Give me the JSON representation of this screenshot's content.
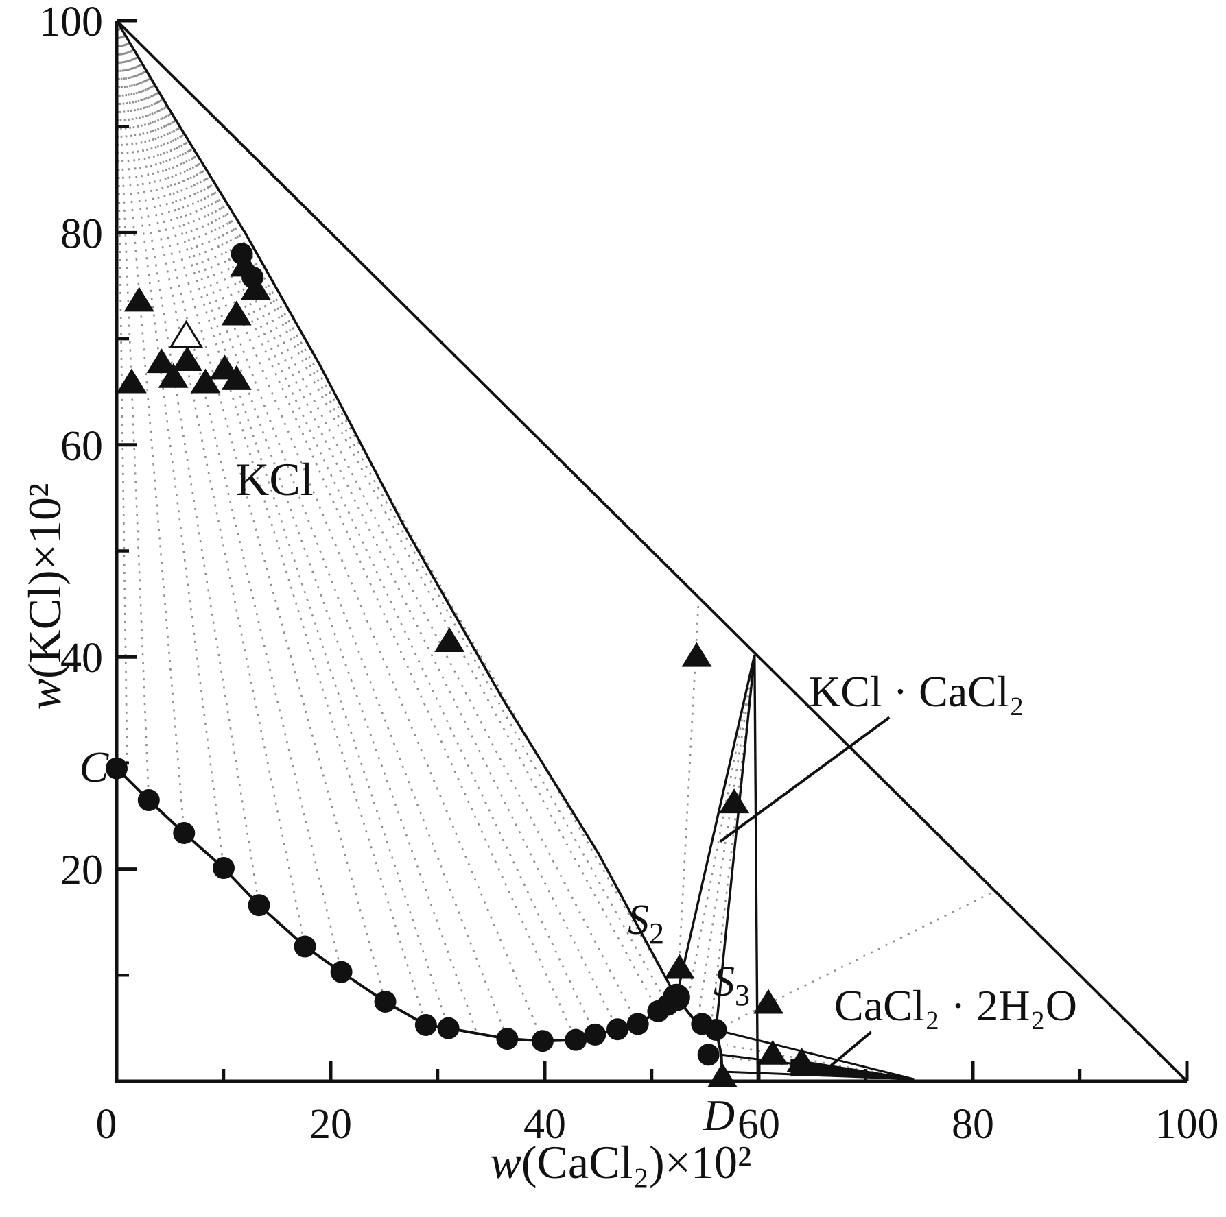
{
  "figure": {
    "background": "#ffffff",
    "ink": "#111111",
    "tie_line_color": "#8f8f8f"
  },
  "chart_data": {
    "type": "scatter",
    "description": "Isothermal phase diagram of the KCl-CaCl2-H2O system with wet-residue tie lines",
    "xlabel": {
      "italic_part": "w",
      "rest": "(CaCl₂)×10²"
    },
    "ylabel": {
      "italic_part": "w",
      "rest": "(KCl)×10²"
    },
    "xlim": [
      0,
      100
    ],
    "ylim": [
      0,
      100
    ],
    "x_ticks_major": [
      0,
      20,
      40,
      60,
      80,
      100
    ],
    "x_ticks_minor": [
      10,
      30,
      50,
      70,
      90
    ],
    "x_tick_labels": [
      "0",
      "20",
      "40",
      "60",
      "80",
      "100"
    ],
    "y_ticks_major": [
      20,
      40,
      60,
      80,
      100
    ],
    "y_ticks_minor": [
      10,
      30,
      50,
      70,
      90
    ],
    "y_tick_labels": [
      "20",
      "40",
      "60",
      "80",
      "100"
    ],
    "grid": false,
    "diagonal_line": [
      [
        0,
        100
      ],
      [
        100,
        0
      ]
    ],
    "solids": {
      "KCl_corner": [
        0,
        100
      ],
      "KCl_CaCl2_apex": [
        59.6,
        40.2
      ],
      "CaCl2_2H2O_tip": [
        74.5,
        0.2
      ]
    },
    "kcl_field_boundary": [
      [
        0,
        100
      ],
      [
        5,
        91.5
      ],
      [
        12,
        80
      ],
      [
        19,
        67.5
      ],
      [
        26.6,
        52.8
      ],
      [
        36.1,
        36
      ],
      [
        45,
        21.5
      ],
      [
        52.3,
        7.9
      ]
    ],
    "solubility_curve": [
      [
        0,
        29.5
      ],
      [
        3,
        26.5
      ],
      [
        6.3,
        23.4
      ],
      [
        10,
        20.1
      ],
      [
        13.3,
        16.6
      ],
      [
        17.6,
        12.7
      ],
      [
        21,
        10.3
      ],
      [
        25.1,
        7.5
      ],
      [
        28.9,
        5.3
      ],
      [
        31,
        5.0
      ],
      [
        36.5,
        4.0
      ],
      [
        39.8,
        3.8
      ],
      [
        42.9,
        3.9
      ],
      [
        44.7,
        4.4
      ],
      [
        46.8,
        4.9
      ],
      [
        48.7,
        5.4
      ],
      [
        50.6,
        6.6
      ],
      [
        51.5,
        7.2
      ],
      [
        52.3,
        7.9
      ]
    ],
    "s2_s3_curve": [
      [
        52.3,
        7.9
      ],
      [
        53.8,
        6.0
      ],
      [
        55.2,
        5.1
      ],
      [
        56.0,
        4.85
      ]
    ],
    "s3_d_curve": [
      [
        56.0,
        4.85
      ],
      [
        56.5,
        2.5
      ],
      [
        56.6,
        0.3
      ]
    ],
    "invariant_points": {
      "C": [
        0,
        29.5
      ],
      "S2": [
        52.3,
        7.9
      ],
      "S3": [
        56.0,
        4.85
      ],
      "D": [
        56.6,
        0.3
      ]
    },
    "circle_markers": [
      [
        0,
        29.5
      ],
      [
        3,
        26.5
      ],
      [
        6.3,
        23.4
      ],
      [
        10,
        20.1
      ],
      [
        13.3,
        16.6
      ],
      [
        17.6,
        12.7
      ],
      [
        21,
        10.3
      ],
      [
        25.1,
        7.5
      ],
      [
        28.9,
        5.3
      ],
      [
        31,
        5.0
      ],
      [
        36.5,
        4.0
      ],
      [
        39.8,
        3.8
      ],
      [
        42.9,
        3.9
      ],
      [
        44.7,
        4.4
      ],
      [
        46.8,
        4.9
      ],
      [
        48.7,
        5.4
      ],
      [
        50.6,
        6.6
      ],
      [
        51.5,
        7.2
      ],
      [
        52.3,
        7.9
      ],
      [
        54.7,
        5.4
      ],
      [
        56.0,
        4.85
      ],
      [
        55.3,
        2.5
      ],
      [
        11.7,
        78.0
      ],
      [
        12.7,
        75.8
      ]
    ],
    "triangle_markers": [
      [
        2.1,
        73.6
      ],
      [
        12.0,
        76.9
      ],
      [
        13.0,
        74.7
      ],
      [
        11.2,
        72.3
      ],
      [
        1.4,
        65.9
      ],
      [
        4.2,
        67.8
      ],
      [
        5.3,
        66.4
      ],
      [
        6.6,
        68.0
      ],
      [
        8.3,
        65.9
      ],
      [
        10.1,
        67.2
      ],
      [
        11.2,
        66.2
      ],
      [
        31.1,
        41.5
      ],
      [
        54.2,
        40.1
      ],
      [
        52.6,
        10.7
      ],
      [
        57.7,
        26.3
      ],
      [
        60.9,
        7.4
      ],
      [
        61.3,
        2.6
      ],
      [
        64.0,
        1.9
      ],
      [
        56.6,
        0.45
      ]
    ],
    "open_triangle_markers": [
      [
        6.5,
        70.3
      ]
    ],
    "kcl_tie_lines_to": [
      [
        1.0,
        28.8
      ],
      [
        3,
        26.5
      ],
      [
        6.3,
        23.4
      ],
      [
        10,
        20.1
      ],
      [
        13.3,
        16.6
      ],
      [
        17.6,
        12.7
      ],
      [
        21,
        10.3
      ],
      [
        25.1,
        7.5
      ],
      [
        28.9,
        5.3
      ],
      [
        31,
        5.0
      ],
      [
        33.7,
        4.4
      ],
      [
        36.5,
        4.0
      ],
      [
        39.8,
        3.8
      ],
      [
        42.9,
        3.9
      ],
      [
        44.7,
        4.4
      ],
      [
        46.8,
        4.9
      ],
      [
        48.7,
        5.4
      ],
      [
        50.6,
        6.6
      ],
      [
        51.5,
        7.2
      ],
      [
        52.3,
        7.9
      ]
    ],
    "apex_solid_lines_to": [
      [
        52.3,
        7.9
      ],
      [
        56.0,
        4.85
      ],
      [
        59.9,
        0.0
      ]
    ],
    "apex_dashed_fan_to": [
      [
        53.2,
        6.8
      ],
      [
        54.3,
        5.8
      ],
      [
        55.5,
        5.0
      ]
    ],
    "sliver_solid_lines_to": [
      [
        56.0,
        4.85
      ],
      [
        56.5,
        2.5
      ],
      [
        56.8,
        0.9
      ]
    ],
    "sliver_dashed_fan_to": [
      [
        57.0,
        3.4
      ],
      [
        57.2,
        2.2
      ]
    ],
    "sliver_fill_polygon": [
      [
        63.0,
        2.1
      ],
      [
        74.5,
        0.25
      ],
      [
        63.0,
        0.55
      ]
    ],
    "extra_tie_lines": [
      [
        [
          52.4,
          8.2
        ],
        [
          54.35,
          44.9
        ]
      ],
      [
        [
          56.0,
          4.85
        ],
        [
          82.0,
          17.9
        ]
      ]
    ],
    "pointer_lines": [
      {
        "id": "kcl-cacl2-pointer",
        "from": [
          72.2,
          34.3
        ],
        "to": [
          56.4,
          22.6
        ]
      },
      {
        "id": "cacl2-2h2o-pointer",
        "from": [
          70.5,
          4.65
        ],
        "to": [
          66.3,
          1.1
        ]
      }
    ],
    "labels": {
      "kcl_region": "KCl",
      "kcl_cacl2": "KCl · CaCl₂",
      "cacl2_2h2o": "CaCl₂ · 2H₂O",
      "point_c": "C",
      "point_d": "D",
      "s2_base": "S",
      "s2_sub": "2",
      "s3_base": "S",
      "s3_sub": "3"
    }
  }
}
